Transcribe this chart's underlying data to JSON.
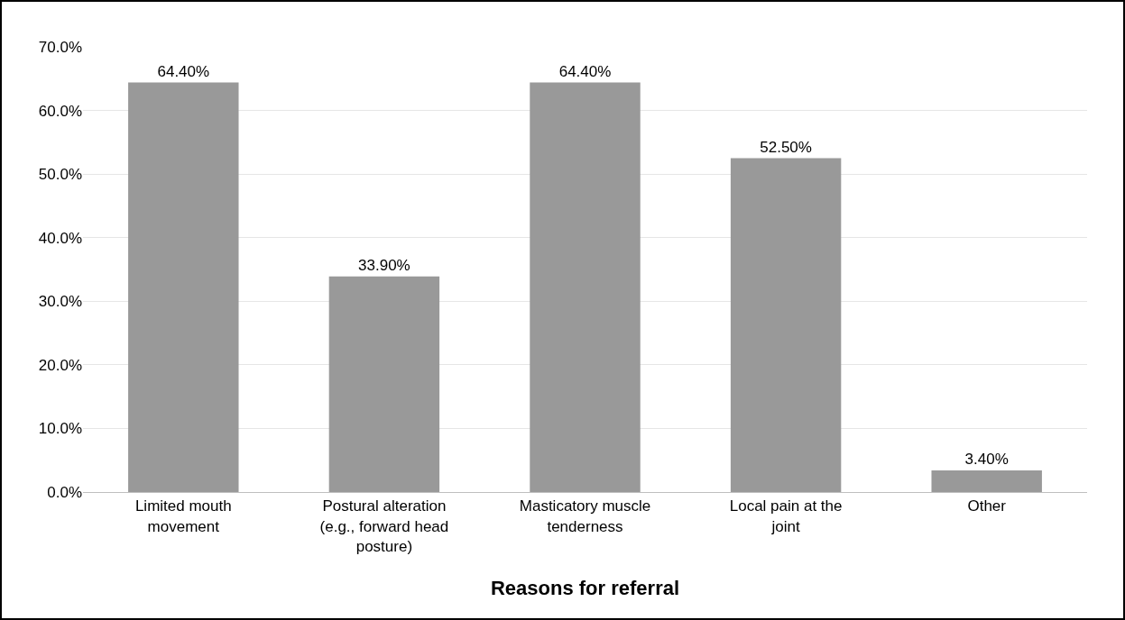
{
  "chart_data": {
    "type": "bar",
    "xlabel": "Reasons for referral",
    "categories": [
      "Limited mouth movement",
      "Postural alteration (e.g., forward head posture)",
      "Masticatory muscle tenderness",
      "Local pain at the joint",
      "Other"
    ],
    "values": [
      64.4,
      33.9,
      64.4,
      52.5,
      3.4
    ],
    "value_labels": [
      "64.40%",
      "33.90%",
      "64.40%",
      "52.50%",
      "3.40%"
    ],
    "color": "#999999",
    "ylim": [
      0,
      70
    ],
    "yticks": [
      {
        "value": 0,
        "label": "0.0%"
      },
      {
        "value": 10,
        "label": "10.0%"
      },
      {
        "value": 20,
        "label": "20.0%"
      },
      {
        "value": 30,
        "label": "30.0%"
      },
      {
        "value": 40,
        "label": "40.0%"
      },
      {
        "value": 50,
        "label": "50.0%"
      },
      {
        "value": 60,
        "label": "60.0%"
      },
      {
        "value": 70,
        "label": "70.0%"
      }
    ],
    "grid": "y",
    "legend": false
  }
}
